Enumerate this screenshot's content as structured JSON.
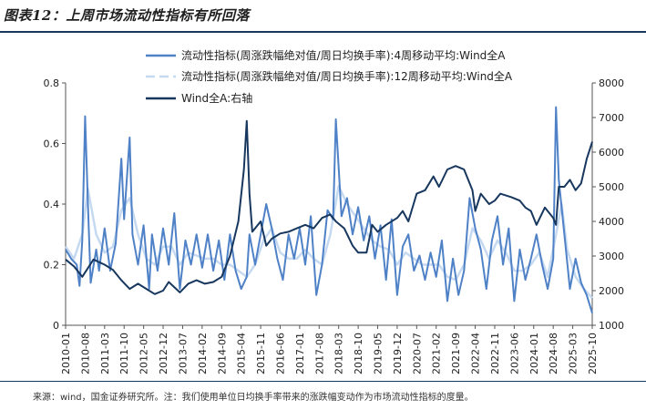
{
  "figure": {
    "title": "图表12：上周市场流动性指标有所回落",
    "source": "来源：wind，国金证券研究所。注：我们使用单位日均换手率带来的涨跌幅变动作为市场流动性指标的度量。"
  },
  "chart_data": {
    "type": "line",
    "title": "",
    "legend": [
      "流动性指标(周涨跌幅绝对值/周日均换手率):4周移动平均:Wind全A",
      "流动性指标(周涨跌幅绝对值/周日均换手率):12周移动平均:Wind全A",
      "Wind全A:右轴"
    ],
    "legend_position": "top-right",
    "grid": false,
    "x_ticks": [
      "2010-01",
      "2010-08",
      "2011-03",
      "2011-10",
      "2012-05",
      "2012-12",
      "2013-07",
      "2014-02",
      "2014-09",
      "2015-04",
      "2015-11",
      "2016-06",
      "2017-01",
      "2017-08",
      "2018-03",
      "2018-10",
      "2019-05",
      "2019-12",
      "2020-07",
      "2021-02",
      "2021-09",
      "2022-04",
      "2022-11",
      "2023-06",
      "2024-01",
      "2024-08",
      "2025-03",
      "2025-10"
    ],
    "x_range": [
      "2010-01",
      "2025-10"
    ],
    "y_left": {
      "range": [
        0,
        0.8
      ],
      "ticks": [
        "0",
        "0.2",
        "0.4",
        "0.6",
        "0.8"
      ]
    },
    "y_right": {
      "range": [
        1000,
        8000
      ],
      "ticks": [
        "1000",
        "2000",
        "3000",
        "4000",
        "5000",
        "6000",
        "7000",
        "8000"
      ]
    },
    "colors": {
      "ma4": "#4f81c7",
      "ma12": "#c5d9f1",
      "wind": "#17375e"
    },
    "series": [
      {
        "name": "流动性指标(周涨跌幅绝对值/周日均换手率):4周移动平均:Wind全A",
        "axis": "left",
        "points": [
          [
            "2010-01",
            0.25
          ],
          [
            "2010-03",
            0.22
          ],
          [
            "2010-05",
            0.2
          ],
          [
            "2010-06",
            0.13
          ],
          [
            "2010-07",
            0.28
          ],
          [
            "2010-08",
            0.69
          ],
          [
            "2010-09",
            0.4
          ],
          [
            "2010-10",
            0.14
          ],
          [
            "2010-12",
            0.25
          ],
          [
            "2011-01",
            0.18
          ],
          [
            "2011-03",
            0.32
          ],
          [
            "2011-05",
            0.18
          ],
          [
            "2011-07",
            0.27
          ],
          [
            "2011-09",
            0.55
          ],
          [
            "2011-10",
            0.35
          ],
          [
            "2011-12",
            0.62
          ],
          [
            "2012-01",
            0.3
          ],
          [
            "2012-03",
            0.2
          ],
          [
            "2012-05",
            0.33
          ],
          [
            "2012-07",
            0.12
          ],
          [
            "2012-08",
            0.3
          ],
          [
            "2012-10",
            0.18
          ],
          [
            "2012-12",
            0.32
          ],
          [
            "2013-02",
            0.2
          ],
          [
            "2013-04",
            0.37
          ],
          [
            "2013-06",
            0.12
          ],
          [
            "2013-08",
            0.28
          ],
          [
            "2013-10",
            0.2
          ],
          [
            "2013-12",
            0.3
          ],
          [
            "2014-02",
            0.19
          ],
          [
            "2014-04",
            0.3
          ],
          [
            "2014-06",
            0.18
          ],
          [
            "2014-08",
            0.28
          ],
          [
            "2014-10",
            0.15
          ],
          [
            "2014-12",
            0.3
          ],
          [
            "2015-02",
            0.18
          ],
          [
            "2015-04",
            0.12
          ],
          [
            "2015-06",
            0.16
          ],
          [
            "2015-07",
            0.3
          ],
          [
            "2015-09",
            0.2
          ],
          [
            "2015-11",
            0.3
          ],
          [
            "2016-01",
            0.4
          ],
          [
            "2016-03",
            0.32
          ],
          [
            "2016-05",
            0.22
          ],
          [
            "2016-07",
            0.15
          ],
          [
            "2016-09",
            0.3
          ],
          [
            "2016-11",
            0.22
          ],
          [
            "2017-01",
            0.32
          ],
          [
            "2017-03",
            0.2
          ],
          [
            "2017-05",
            0.36
          ],
          [
            "2017-07",
            0.1
          ],
          [
            "2017-09",
            0.2
          ],
          [
            "2017-11",
            0.38
          ],
          [
            "2018-01",
            0.35
          ],
          [
            "2018-02",
            0.68
          ],
          [
            "2018-04",
            0.36
          ],
          [
            "2018-06",
            0.42
          ],
          [
            "2018-08",
            0.3
          ],
          [
            "2018-10",
            0.39
          ],
          [
            "2018-12",
            0.28
          ],
          [
            "2019-02",
            0.36
          ],
          [
            "2019-04",
            0.22
          ],
          [
            "2019-06",
            0.33
          ],
          [
            "2019-08",
            0.15
          ],
          [
            "2019-10",
            0.35
          ],
          [
            "2019-12",
            0.1
          ],
          [
            "2020-02",
            0.26
          ],
          [
            "2020-04",
            0.3
          ],
          [
            "2020-06",
            0.18
          ],
          [
            "2020-08",
            0.23
          ],
          [
            "2020-10",
            0.15
          ],
          [
            "2020-12",
            0.24
          ],
          [
            "2021-02",
            0.16
          ],
          [
            "2021-04",
            0.28
          ],
          [
            "2021-06",
            0.08
          ],
          [
            "2021-08",
            0.22
          ],
          [
            "2021-10",
            0.1
          ],
          [
            "2021-12",
            0.18
          ],
          [
            "2022-02",
            0.42
          ],
          [
            "2022-04",
            0.32
          ],
          [
            "2022-06",
            0.25
          ],
          [
            "2022-08",
            0.12
          ],
          [
            "2022-10",
            0.28
          ],
          [
            "2022-12",
            0.36
          ],
          [
            "2023-02",
            0.2
          ],
          [
            "2023-04",
            0.32
          ],
          [
            "2023-06",
            0.08
          ],
          [
            "2023-08",
            0.25
          ],
          [
            "2023-10",
            0.15
          ],
          [
            "2023-12",
            0.22
          ],
          [
            "2024-02",
            0.3
          ],
          [
            "2024-04",
            0.2
          ],
          [
            "2024-06",
            0.12
          ],
          [
            "2024-08",
            0.22
          ],
          [
            "2024-09",
            0.72
          ],
          [
            "2024-10",
            0.48
          ],
          [
            "2024-12",
            0.3
          ],
          [
            "2025-02",
            0.12
          ],
          [
            "2025-04",
            0.22
          ],
          [
            "2025-06",
            0.14
          ],
          [
            "2025-08",
            0.1
          ],
          [
            "2025-10",
            0.04
          ]
        ]
      },
      {
        "name": "流动性指标(周涨跌幅绝对值/周日均换手率):12周移动平均:Wind全A",
        "axis": "left",
        "points": [
          [
            "2010-01",
            0.26
          ],
          [
            "2010-04",
            0.22
          ],
          [
            "2010-07",
            0.3
          ],
          [
            "2010-09",
            0.45
          ],
          [
            "2010-12",
            0.3
          ],
          [
            "2011-03",
            0.24
          ],
          [
            "2011-06",
            0.26
          ],
          [
            "2011-09",
            0.38
          ],
          [
            "2011-12",
            0.42
          ],
          [
            "2012-03",
            0.3
          ],
          [
            "2012-06",
            0.22
          ],
          [
            "2012-09",
            0.2
          ],
          [
            "2012-12",
            0.26
          ],
          [
            "2013-03",
            0.26
          ],
          [
            "2013-06",
            0.2
          ],
          [
            "2013-09",
            0.24
          ],
          [
            "2013-12",
            0.23
          ],
          [
            "2014-03",
            0.22
          ],
          [
            "2014-06",
            0.22
          ],
          [
            "2014-09",
            0.2
          ],
          [
            "2014-12",
            0.2
          ],
          [
            "2015-03",
            0.18
          ],
          [
            "2015-06",
            0.16
          ],
          [
            "2015-09",
            0.2
          ],
          [
            "2015-12",
            0.28
          ],
          [
            "2016-03",
            0.32
          ],
          [
            "2016-06",
            0.24
          ],
          [
            "2016-09",
            0.22
          ],
          [
            "2016-12",
            0.22
          ],
          [
            "2017-03",
            0.25
          ],
          [
            "2017-06",
            0.22
          ],
          [
            "2017-09",
            0.2
          ],
          [
            "2017-12",
            0.3
          ],
          [
            "2018-03",
            0.46
          ],
          [
            "2018-06",
            0.4
          ],
          [
            "2018-09",
            0.36
          ],
          [
            "2018-12",
            0.32
          ],
          [
            "2019-03",
            0.28
          ],
          [
            "2019-06",
            0.26
          ],
          [
            "2019-09",
            0.25
          ],
          [
            "2019-12",
            0.2
          ],
          [
            "2020-03",
            0.24
          ],
          [
            "2020-06",
            0.22
          ],
          [
            "2020-09",
            0.2
          ],
          [
            "2020-12",
            0.2
          ],
          [
            "2021-03",
            0.2
          ],
          [
            "2021-06",
            0.16
          ],
          [
            "2021-09",
            0.15
          ],
          [
            "2021-12",
            0.2
          ],
          [
            "2022-03",
            0.32
          ],
          [
            "2022-06",
            0.28
          ],
          [
            "2022-09",
            0.22
          ],
          [
            "2022-12",
            0.28
          ],
          [
            "2023-03",
            0.24
          ],
          [
            "2023-06",
            0.18
          ],
          [
            "2023-09",
            0.18
          ],
          [
            "2023-12",
            0.2
          ],
          [
            "2024-03",
            0.24
          ],
          [
            "2024-06",
            0.16
          ],
          [
            "2024-09",
            0.3
          ],
          [
            "2024-11",
            0.4
          ],
          [
            "2025-01",
            0.25
          ],
          [
            "2025-04",
            0.16
          ],
          [
            "2025-07",
            0.12
          ],
          [
            "2025-10",
            0.09
          ]
        ]
      },
      {
        "name": "Wind全A:右轴",
        "axis": "right",
        "points": [
          [
            "2010-01",
            2900
          ],
          [
            "2010-04",
            2700
          ],
          [
            "2010-07",
            2400
          ],
          [
            "2010-11",
            2900
          ],
          [
            "2011-03",
            2750
          ],
          [
            "2011-06",
            2600
          ],
          [
            "2011-09",
            2300
          ],
          [
            "2011-12",
            2050
          ],
          [
            "2012-03",
            2200
          ],
          [
            "2012-06",
            2050
          ],
          [
            "2012-09",
            1900
          ],
          [
            "2012-12",
            2000
          ],
          [
            "2013-02",
            2250
          ],
          [
            "2013-06",
            1950
          ],
          [
            "2013-09",
            2200
          ],
          [
            "2013-12",
            2300
          ],
          [
            "2014-03",
            2200
          ],
          [
            "2014-06",
            2250
          ],
          [
            "2014-09",
            2400
          ],
          [
            "2014-12",
            3000
          ],
          [
            "2015-03",
            4000
          ],
          [
            "2015-05",
            5500
          ],
          [
            "2015-06",
            6900
          ],
          [
            "2015-07",
            4800
          ],
          [
            "2015-08",
            3700
          ],
          [
            "2015-11",
            4000
          ],
          [
            "2016-01",
            3300
          ],
          [
            "2016-03",
            3500
          ],
          [
            "2016-06",
            3650
          ],
          [
            "2016-09",
            3700
          ],
          [
            "2016-12",
            3800
          ],
          [
            "2017-03",
            3900
          ],
          [
            "2017-06",
            3800
          ],
          [
            "2017-09",
            4100
          ],
          [
            "2017-12",
            4200
          ],
          [
            "2018-02",
            4000
          ],
          [
            "2018-05",
            3800
          ],
          [
            "2018-08",
            3300
          ],
          [
            "2018-10",
            3100
          ],
          [
            "2019-01",
            3100
          ],
          [
            "2019-03",
            3900
          ],
          [
            "2019-05",
            3700
          ],
          [
            "2019-08",
            3900
          ],
          [
            "2019-12",
            4100
          ],
          [
            "2020-02",
            4300
          ],
          [
            "2020-04",
            4000
          ],
          [
            "2020-07",
            4800
          ],
          [
            "2020-10",
            4900
          ],
          [
            "2021-01",
            5300
          ],
          [
            "2021-03",
            5000
          ],
          [
            "2021-06",
            5500
          ],
          [
            "2021-09",
            5600
          ],
          [
            "2021-12",
            5500
          ],
          [
            "2022-03",
            4900
          ],
          [
            "2022-04",
            4300
          ],
          [
            "2022-06",
            4800
          ],
          [
            "2022-09",
            4500
          ],
          [
            "2022-11",
            4600
          ],
          [
            "2023-01",
            4800
          ],
          [
            "2023-05",
            4700
          ],
          [
            "2023-08",
            4600
          ],
          [
            "2023-10",
            4400
          ],
          [
            "2023-12",
            4300
          ],
          [
            "2024-02",
            3900
          ],
          [
            "2024-05",
            4400
          ],
          [
            "2024-08",
            4100
          ],
          [
            "2024-09",
            3900
          ],
          [
            "2024-10",
            5000
          ],
          [
            "2024-12",
            5000
          ],
          [
            "2025-02",
            5200
          ],
          [
            "2025-04",
            4900
          ],
          [
            "2025-06",
            5100
          ],
          [
            "2025-08",
            5800
          ],
          [
            "2025-10",
            6300
          ]
        ]
      }
    ]
  }
}
